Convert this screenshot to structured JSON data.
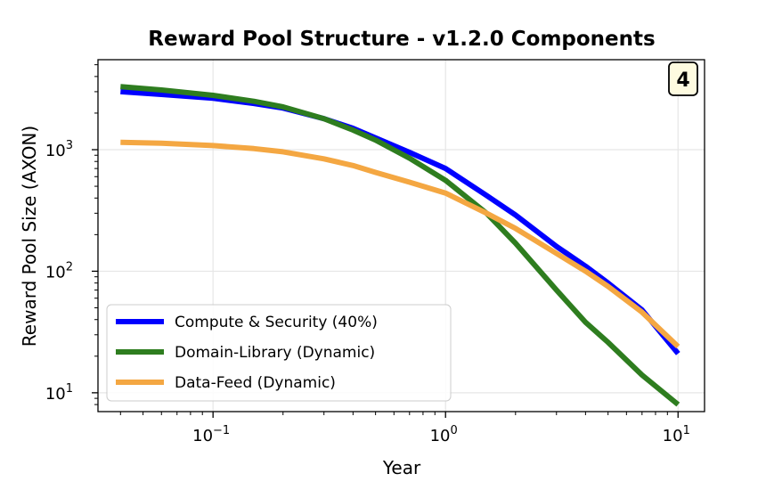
{
  "chart_data": {
    "type": "line",
    "title": "Reward Pool Structure - v1.2.0 Components",
    "xlabel": "Year",
    "ylabel": "Reward Pool Size (AXON)",
    "xscale": "log",
    "yscale": "log",
    "xlim": [
      0.032,
      13
    ],
    "ylim": [
      7,
      5500
    ],
    "grid": true,
    "x_ticks": [
      {
        "value": 0.1,
        "base": "10",
        "exp": "−1"
      },
      {
        "value": 1,
        "base": "10",
        "exp": "0"
      },
      {
        "value": 10,
        "base": "10",
        "exp": "1"
      }
    ],
    "y_ticks": [
      {
        "value": 10,
        "base": "10",
        "exp": "1"
      },
      {
        "value": 100,
        "base": "10",
        "exp": "2"
      },
      {
        "value": 1000,
        "base": "10",
        "exp": "3"
      }
    ],
    "x": [
      0.04,
      0.06,
      0.1,
      0.15,
      0.2,
      0.3,
      0.4,
      0.5,
      0.7,
      1.0,
      1.5,
      2.0,
      3.0,
      4.0,
      5.0,
      7.0,
      10.0
    ],
    "series": [
      {
        "name": "Compute & Security (40%)",
        "color": "#0000ff",
        "values": [
          3000,
          2850,
          2650,
          2400,
          2200,
          1800,
          1500,
          1250,
          950,
          700,
          420,
          290,
          160,
          110,
          80,
          48,
          21
        ]
      },
      {
        "name": "Domain-Library (Dynamic)",
        "color": "#2e7d1f",
        "values": [
          3300,
          3100,
          2800,
          2500,
          2250,
          1800,
          1450,
          1200,
          850,
          560,
          300,
          170,
          70,
          38,
          26,
          14,
          8
        ]
      },
      {
        "name": "Data-Feed (Dynamic)",
        "color": "#f4a742",
        "values": [
          1150,
          1130,
          1080,
          1020,
          960,
          840,
          740,
          650,
          540,
          440,
          300,
          225,
          140,
          100,
          75,
          46,
          24
        ]
      }
    ],
    "legend_position": "lower-left",
    "annotation": "4"
  }
}
